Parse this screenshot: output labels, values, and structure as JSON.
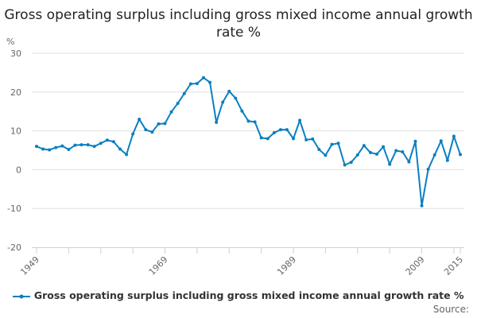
{
  "chart_data": {
    "type": "line",
    "title": "Gross operating surplus including gross mixed income annual growth rate %",
    "ylabel": "%",
    "ylim": [
      -20,
      30
    ],
    "yticks": [
      -20,
      -10,
      0,
      10,
      20,
      30
    ],
    "xticks_labeled": [
      "1949",
      "1969",
      "1989",
      "2009",
      "2015"
    ],
    "grid": true,
    "legend_placement": "bottom",
    "color": "#0b7fc1",
    "x": [
      1949,
      1950,
      1951,
      1952,
      1953,
      1954,
      1955,
      1956,
      1957,
      1958,
      1959,
      1960,
      1961,
      1962,
      1963,
      1964,
      1965,
      1966,
      1967,
      1968,
      1969,
      1970,
      1971,
      1972,
      1973,
      1974,
      1975,
      1976,
      1977,
      1978,
      1979,
      1980,
      1981,
      1982,
      1983,
      1984,
      1985,
      1986,
      1987,
      1988,
      1989,
      1990,
      1991,
      1992,
      1993,
      1994,
      1995,
      1996,
      1997,
      1998,
      1999,
      2000,
      2001,
      2002,
      2003,
      2004,
      2005,
      2006,
      2007,
      2008,
      2009,
      2010,
      2011,
      2012,
      2013,
      2014,
      2015
    ],
    "series": [
      {
        "name": "Gross operating surplus including gross mixed income annual growth rate %",
        "values": [
          6.0,
          5.3,
          5.1,
          5.7,
          6.1,
          5.2,
          6.3,
          6.4,
          6.4,
          6.0,
          6.8,
          7.6,
          7.2,
          5.3,
          3.9,
          9.2,
          13.0,
          10.3,
          9.7,
          11.8,
          11.9,
          14.9,
          17.1,
          19.6,
          22.1,
          22.2,
          23.7,
          22.5,
          12.2,
          17.4,
          20.2,
          18.4,
          15.1,
          12.5,
          12.3,
          8.2,
          8.0,
          9.5,
          10.3,
          10.3,
          8.0,
          12.7,
          7.7,
          7.9,
          5.2,
          3.7,
          6.5,
          6.8,
          1.2,
          1.9,
          3.8,
          6.2,
          4.4,
          4.0,
          5.9,
          1.4,
          4.9,
          4.6,
          2.0,
          7.3,
          -9.3,
          0.1,
          3.8,
          7.4,
          2.4,
          8.6,
          3.9
        ]
      }
    ]
  },
  "source_label": "Source:"
}
